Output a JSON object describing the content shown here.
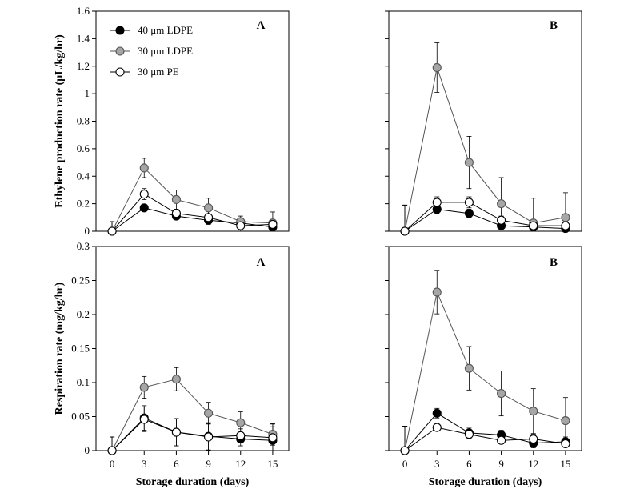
{
  "x_axis_title": "Storage duration (days)",
  "legend": [
    {
      "label": "40 μm LDPE",
      "fill": "#000000",
      "stroke": "#000000"
    },
    {
      "label": "30 μm LDPE",
      "fill": "#a6a6a6",
      "stroke": "#555555"
    },
    {
      "label": "30 μm PE",
      "fill": "#ffffff",
      "stroke": "#000000"
    }
  ],
  "chart_data": [
    {
      "type": "line",
      "panel": "A",
      "ylabel": "Ethylene production rate (μL/kg/hr)",
      "xlabel": "",
      "x": [
        0,
        3,
        6,
        9,
        12,
        15
      ],
      "xlim": [
        -1.5,
        16.5
      ],
      "ylim": [
        0,
        1.6
      ],
      "yticks": [
        "0",
        "0.2",
        "0.4",
        "0.6",
        "0.8",
        "1",
        "1.2",
        "1.4",
        "1.6"
      ],
      "show_xticks": false,
      "show_yticks": true,
      "series": [
        {
          "name": "40 μm LDPE",
          "values": [
            0.0,
            0.17,
            0.11,
            0.08,
            0.06,
            0.03
          ],
          "err": [
            0.07,
            0.02,
            0.02,
            0.02,
            0.02,
            0.01
          ]
        },
        {
          "name": "30 μm LDPE",
          "values": [
            0.0,
            0.46,
            0.23,
            0.17,
            0.07,
            0.06
          ],
          "err": [
            0.07,
            0.07,
            0.07,
            0.07,
            0.04,
            0.08
          ]
        },
        {
          "name": "30 μm PE",
          "values": [
            0.0,
            0.27,
            0.13,
            0.1,
            0.04,
            0.05
          ],
          "err": [
            0.07,
            0.04,
            0.03,
            0.05,
            0.05,
            0.03
          ]
        }
      ]
    },
    {
      "type": "line",
      "panel": "B",
      "ylabel": "",
      "xlabel": "",
      "x": [
        0,
        3,
        6,
        9,
        12,
        15
      ],
      "xlim": [
        -1.5,
        16.5
      ],
      "ylim": [
        0,
        1.6
      ],
      "yticks": [],
      "show_xticks": false,
      "show_yticks": false,
      "series": [
        {
          "name": "40 μm LDPE",
          "values": [
            0.0,
            0.16,
            0.13,
            0.04,
            0.03,
            0.02
          ],
          "err": [
            0.19,
            0.03,
            0.03,
            0.02,
            0.02,
            0.02
          ]
        },
        {
          "name": "30 μm LDPE",
          "values": [
            0.0,
            1.19,
            0.5,
            0.2,
            0.06,
            0.1
          ],
          "err": [
            0.19,
            0.18,
            0.19,
            0.19,
            0.18,
            0.18
          ]
        },
        {
          "name": "30 μm PE",
          "values": [
            0.0,
            0.21,
            0.21,
            0.08,
            0.04,
            0.04
          ],
          "err": [
            0.19,
            0.04,
            0.04,
            0.03,
            0.03,
            0.03
          ]
        }
      ]
    },
    {
      "type": "line",
      "panel": "A",
      "ylabel": "Respiration rate (mg/kg/hr)",
      "xlabel": "Storage duration (days)",
      "x": [
        0,
        3,
        6,
        9,
        12,
        15
      ],
      "xlim": [
        -1.5,
        16.5
      ],
      "ylim": [
        0,
        0.3
      ],
      "yticks": [
        "0",
        "0.05",
        "0.1",
        "0.15",
        "0.2",
        "0.25",
        "0.3"
      ],
      "xticks": [
        "0",
        "3",
        "6",
        "9",
        "12",
        "15"
      ],
      "show_xticks": true,
      "show_yticks": true,
      "series": [
        {
          "name": "40 μm LDPE",
          "values": [
            0.0,
            0.048,
            0.027,
            0.021,
            0.017,
            0.015
          ],
          "err": [
            0.02,
            0.018,
            0.02,
            0.02,
            0.01,
            0.02
          ]
        },
        {
          "name": "30 μm LDPE",
          "values": [
            0.0,
            0.093,
            0.105,
            0.055,
            0.041,
            0.024
          ],
          "err": [
            0.02,
            0.016,
            0.017,
            0.016,
            0.016,
            0.016
          ]
        },
        {
          "name": "30 μm PE",
          "values": [
            0.0,
            0.046,
            0.027,
            0.02,
            0.022,
            0.019
          ],
          "err": [
            0.02,
            0.018,
            0.02,
            0.02,
            0.01,
            0.02
          ]
        }
      ]
    },
    {
      "type": "line",
      "panel": "B",
      "ylabel": "",
      "xlabel": "Storage duration (days)",
      "x": [
        0,
        3,
        6,
        9,
        12,
        15
      ],
      "xlim": [
        -1.5,
        16.5
      ],
      "ylim": [
        0,
        0.3
      ],
      "yticks": [],
      "xticks": [
        "0",
        "3",
        "6",
        "9",
        "12",
        "15"
      ],
      "show_xticks": true,
      "show_yticks": false,
      "series": [
        {
          "name": "40 μm LDPE",
          "values": [
            0.0,
            0.055,
            0.026,
            0.023,
            0.011,
            0.013
          ],
          "err": [
            0.036,
            0.007,
            0.007,
            0.007,
            0.007,
            0.007
          ]
        },
        {
          "name": "30 μm LDPE",
          "values": [
            0.0,
            0.233,
            0.121,
            0.084,
            0.058,
            0.044
          ],
          "err": [
            0.036,
            0.032,
            0.032,
            0.033,
            0.033,
            0.034
          ]
        },
        {
          "name": "30 μm PE",
          "values": [
            0.0,
            0.034,
            0.024,
            0.015,
            0.017,
            0.01
          ],
          "err": [
            0.036,
            0.004,
            0.006,
            0.005,
            0.007,
            0.004
          ]
        }
      ]
    }
  ]
}
